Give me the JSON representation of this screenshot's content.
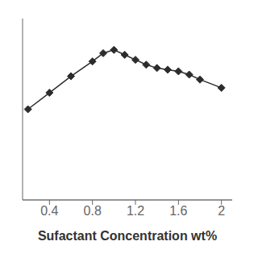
{
  "chart_data": {
    "type": "line",
    "x": [
      0.2,
      0.4,
      0.6,
      0.8,
      0.9,
      1.0,
      1.1,
      1.2,
      1.3,
      1.4,
      1.5,
      1.6,
      1.7,
      1.8,
      2.0
    ],
    "values": [
      55,
      65,
      75,
      84,
      89,
      91,
      88,
      85,
      82,
      80,
      79,
      78,
      76,
      73,
      68
    ],
    "xlabel": "Sufactant Concentration wt%",
    "xlim": [
      0.15,
      2.1
    ],
    "xticks": [
      0.4,
      0.8,
      1.2,
      1.6,
      2
    ],
    "ylim": [
      0,
      110
    ],
    "yticks": [],
    "tick_labels": "x",
    "color": "#2c2c2c",
    "marker": "diamond",
    "grid": false
  }
}
